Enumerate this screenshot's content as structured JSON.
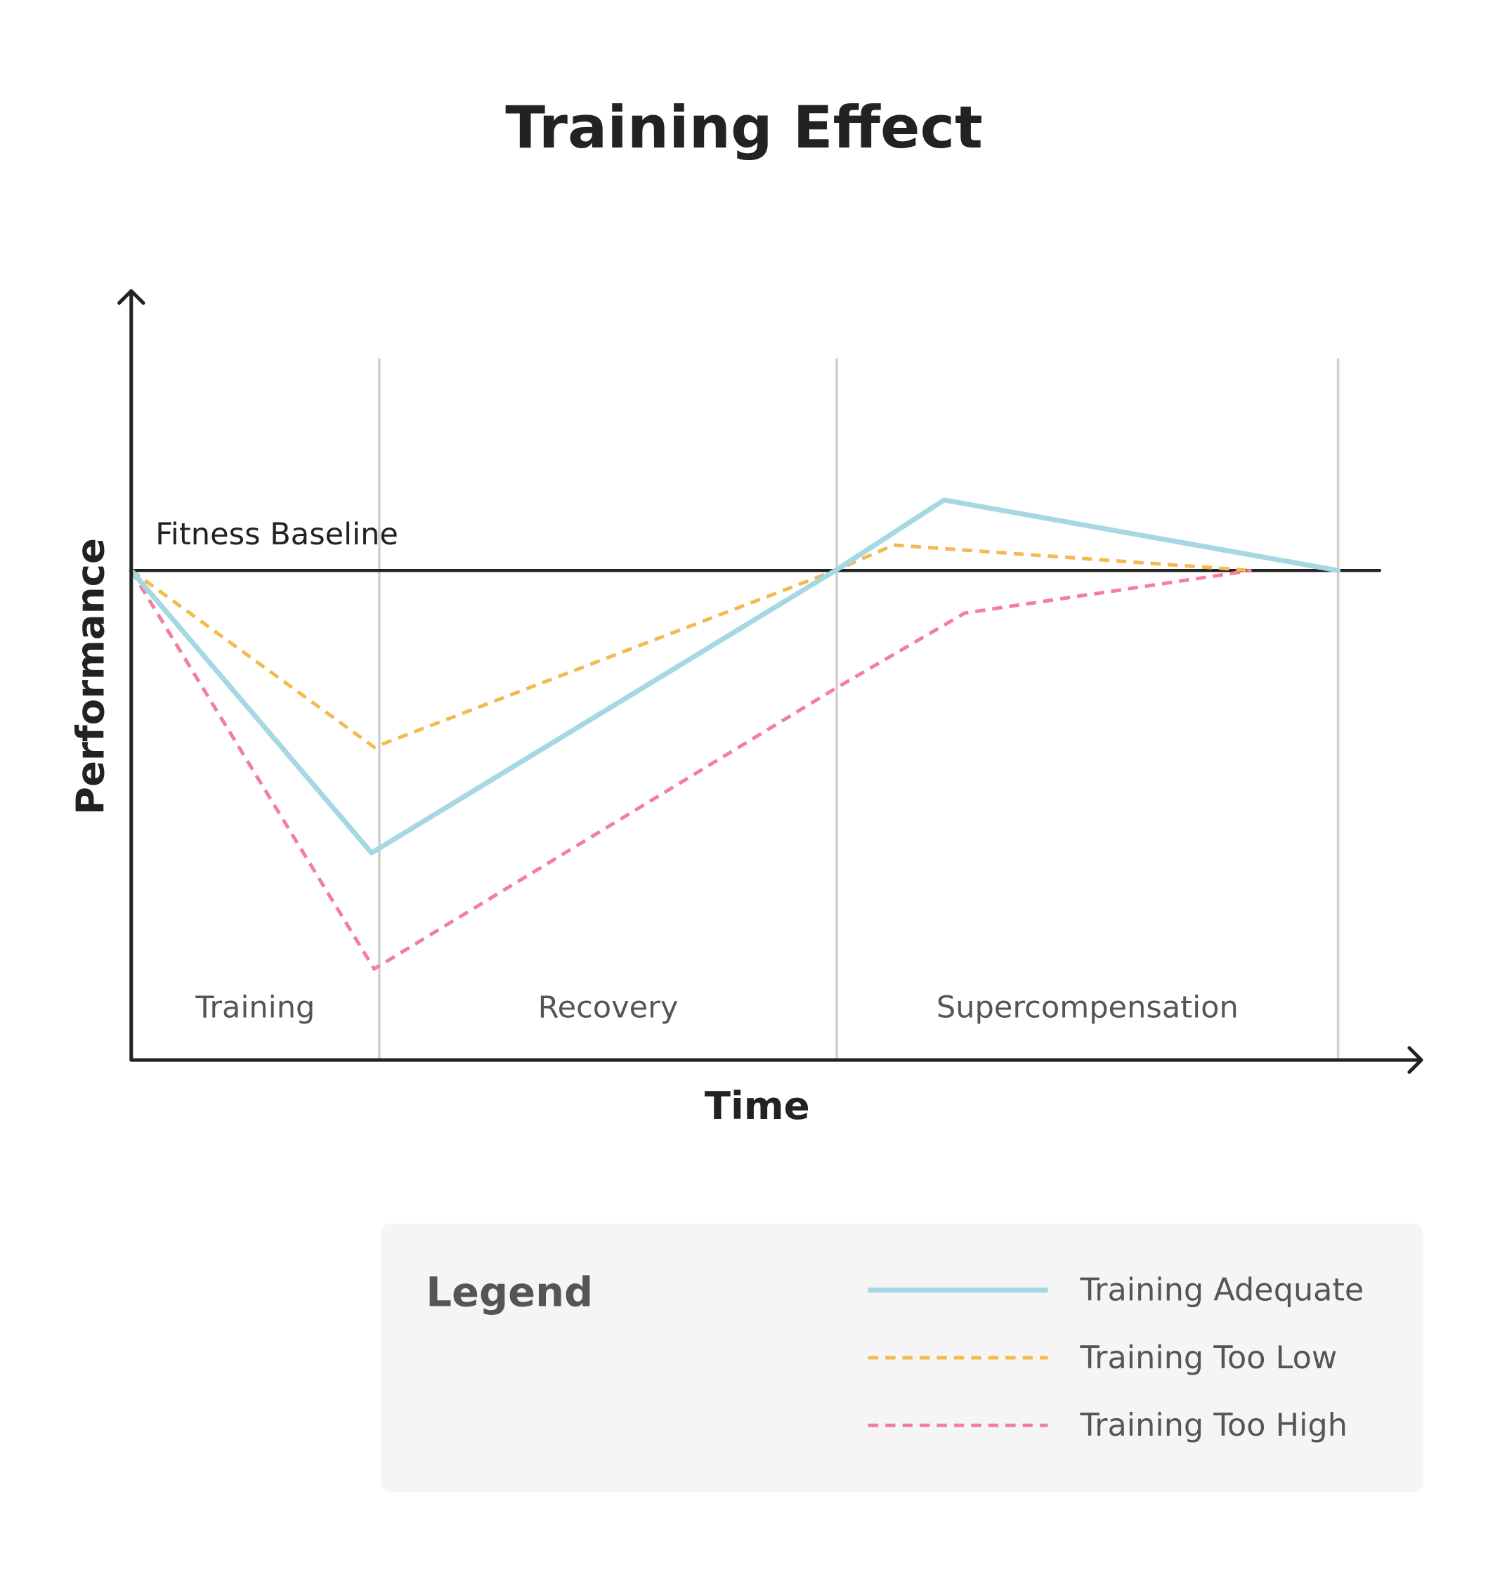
{
  "chart_data": {
    "type": "line",
    "title": "Training Effect",
    "x_label": "Time",
    "y_label": "Performance",
    "xlim": [
      0,
      100
    ],
    "ylim": [
      -100,
      56.7
    ],
    "baseline": {
      "value": 0,
      "label": "Fitness Baseline"
    },
    "phase_boundaries": [
      19.2,
      54.6,
      93.4
    ],
    "phases": [
      {
        "label": "Training",
        "center": 9.6
      },
      {
        "label": "Recovery",
        "center": 36.9
      },
      {
        "label": "Supercompensation",
        "center": 74
      }
    ],
    "legend_title": "Legend",
    "series": [
      {
        "name": "Training Adequate",
        "color": "#a5d8e3",
        "dashed": false,
        "x": [
          0,
          18.6,
          54.5,
          62.9,
          93.4
        ],
        "values": [
          0,
          -57.7,
          0,
          14.4,
          0
        ]
      },
      {
        "name": "Training Too Low",
        "color": "#f5b94f",
        "dashed": true,
        "x": [
          0,
          18.8,
          54.5,
          59,
          86.7
        ],
        "values": [
          0,
          -36.1,
          0,
          5.2,
          0
        ]
      },
      {
        "name": "Training Too High",
        "color": "#f37f9c",
        "dashed": true,
        "x": [
          0,
          18.8,
          54.5,
          64.5,
          86.7
        ],
        "values": [
          0,
          -81.4,
          -24.1,
          -8.7,
          0
        ]
      }
    ]
  }
}
